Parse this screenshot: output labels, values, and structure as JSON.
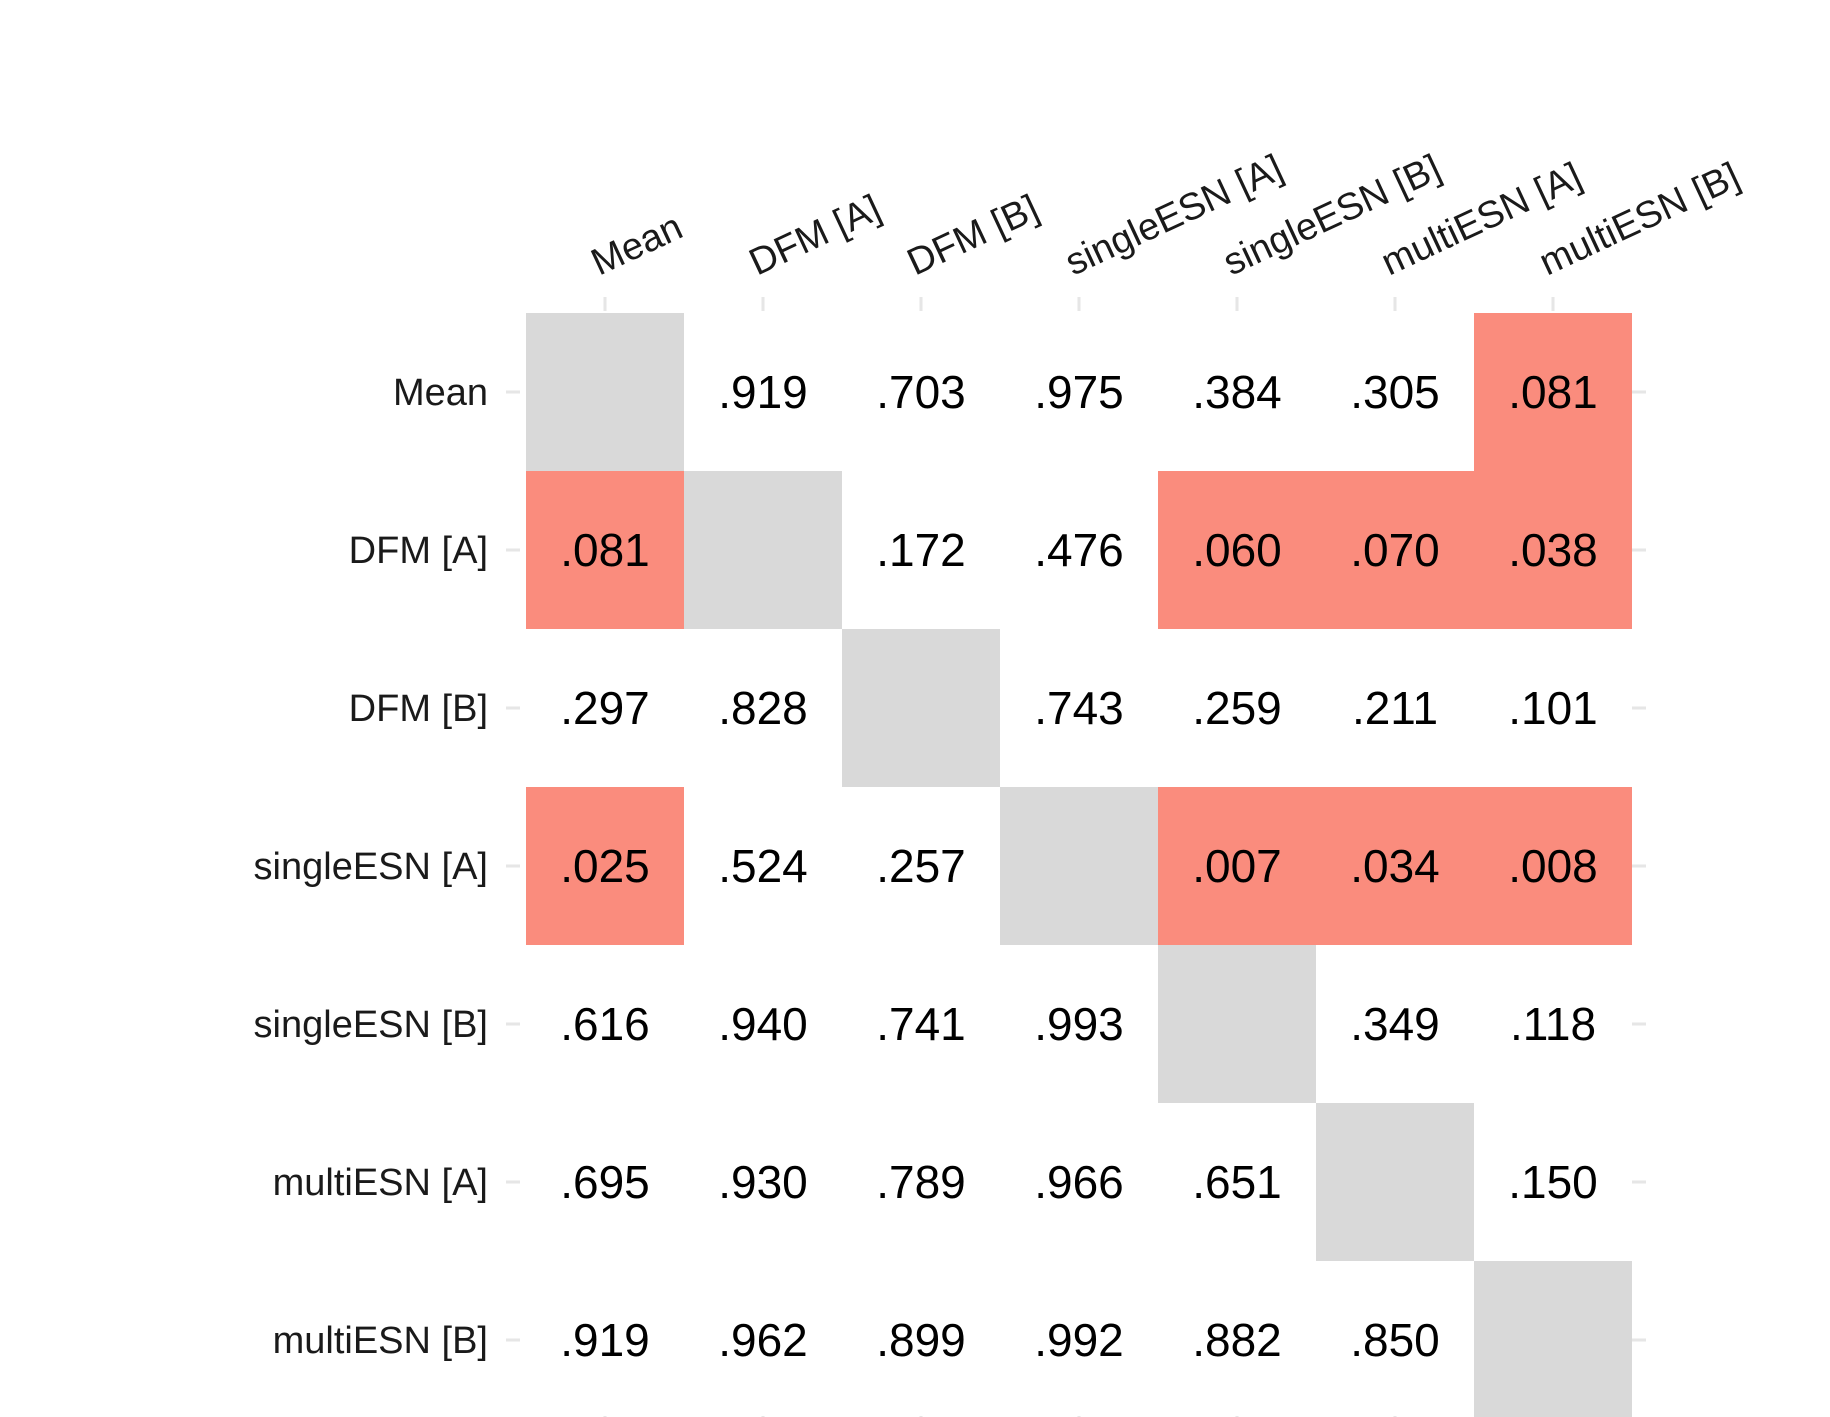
{
  "chart_data": {
    "type": "heatmap",
    "title": "",
    "xlabel": "",
    "ylabel": "",
    "columns": [
      "Mean",
      "DFM [A]",
      "DFM [B]",
      "singleESN [A]",
      "singleESN [B]",
      "multiESN [A]",
      "multiESN [B]"
    ],
    "rows": [
      "Mean",
      "DFM [A]",
      "DFM [B]",
      "singleESN [A]",
      "singleESN [B]",
      "multiESN [A]",
      "multiESN [B]"
    ],
    "values": [
      [
        null,
        ".919",
        ".703",
        ".975",
        ".384",
        ".305",
        ".081"
      ],
      [
        ".081",
        null,
        ".172",
        ".476",
        ".060",
        ".070",
        ".038"
      ],
      [
        ".297",
        ".828",
        null,
        ".743",
        ".259",
        ".211",
        ".101"
      ],
      [
        ".025",
        ".524",
        ".257",
        null,
        ".007",
        ".034",
        ".008"
      ],
      [
        ".616",
        ".940",
        ".741",
        ".993",
        null,
        ".349",
        ".118"
      ],
      [
        ".695",
        ".930",
        ".789",
        ".966",
        ".651",
        null,
        ".150"
      ],
      [
        ".919",
        ".962",
        ".899",
        ".992",
        ".882",
        ".850",
        null
      ]
    ],
    "highlighted": [
      [
        false,
        false,
        false,
        false,
        false,
        false,
        true
      ],
      [
        true,
        false,
        false,
        false,
        true,
        true,
        true
      ],
      [
        false,
        false,
        false,
        false,
        false,
        false,
        false
      ],
      [
        true,
        false,
        false,
        false,
        true,
        true,
        true
      ],
      [
        false,
        false,
        false,
        false,
        false,
        false,
        false
      ],
      [
        false,
        false,
        false,
        false,
        false,
        false,
        false
      ],
      [
        false,
        false,
        false,
        false,
        false,
        false,
        false
      ]
    ],
    "colors": {
      "highlight": "#fa8c7d",
      "diagonal": "#d9d9d9",
      "background": "#ffffff",
      "tick": "#e6e6e6"
    },
    "grid": false,
    "legend": "none"
  }
}
